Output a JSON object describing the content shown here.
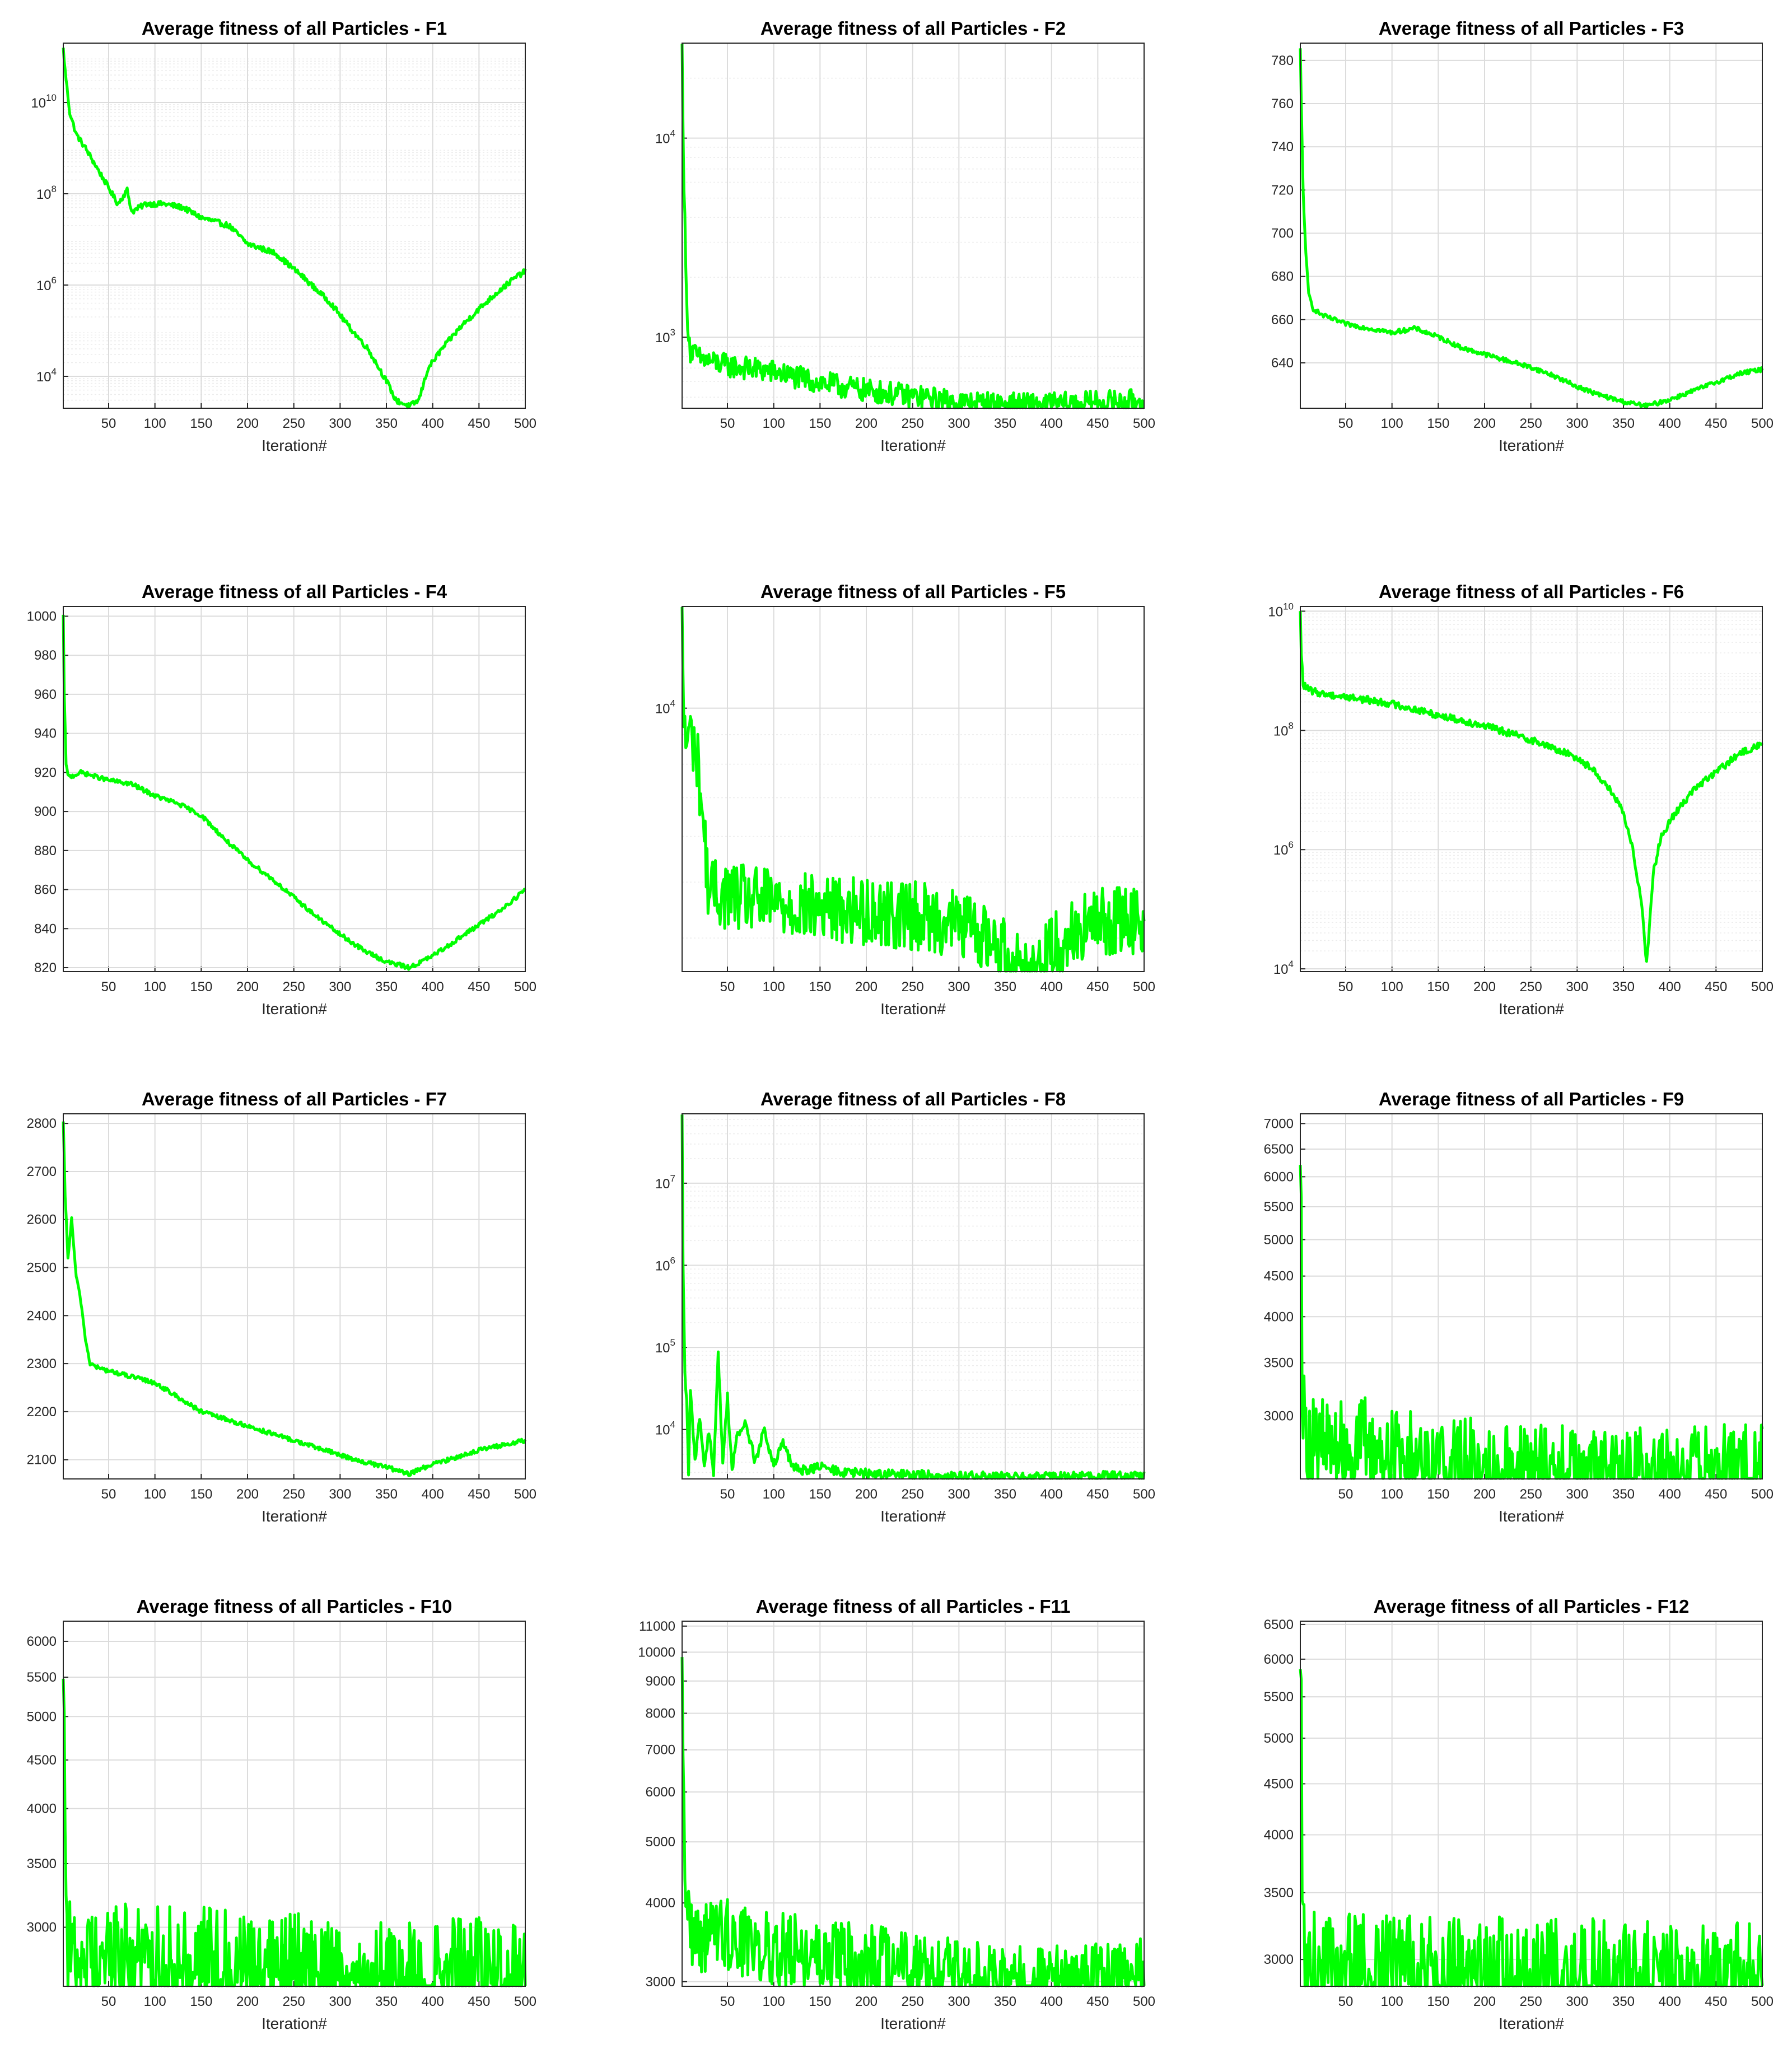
{
  "chart_data": [
    {
      "type": "line",
      "title": "Average fitness of all Particles - F1",
      "xlabel": "Iteration#",
      "ylabel": "",
      "xlim": [
        1,
        500
      ],
      "xticks": [
        50,
        100,
        150,
        200,
        250,
        300,
        350,
        400,
        450,
        500
      ],
      "yscale": "log",
      "ylim": [
        2000,
        200000000000.0
      ],
      "ytick_labels": [
        {
          "v": 10000,
          "base": "10",
          "exp": "4"
        },
        {
          "v": 1000000,
          "base": "10",
          "exp": "6"
        },
        {
          "v": 100000000,
          "base": "10",
          "exp": "8"
        },
        {
          "v": 10000000000,
          "base": "10",
          "exp": "10"
        }
      ],
      "grid": true,
      "line_color": "#00ff00",
      "series": [
        {
          "x": [
            1,
            3,
            8,
            15,
            25,
            40,
            60,
            70,
            75,
            90,
            110,
            130,
            150,
            180,
            200,
            230,
            260,
            290,
            310,
            330,
            350,
            360,
            375,
            385,
            395,
            410,
            430,
            450,
            470,
            490,
            500
          ],
          "y": [
            150000000000.0,
            50000000000.0,
            6000000000.0,
            2000000000.0,
            1000000000.0,
            300000000.0,
            60000000.0,
            120000000.0,
            40000000.0,
            60000000.0,
            60000000.0,
            50000000.0,
            30000000.0,
            20000000.0,
            8000000.0,
            5000000.0,
            1500000.0,
            400000.0,
            120000.0,
            40000.0,
            8000.0,
            3000.0,
            2200.0,
            3000.0,
            15000.0,
            40000.0,
            120000.0,
            300000.0,
            700000.0,
            1500000.0,
            2000000.0
          ]
        }
      ]
    },
    {
      "type": "line",
      "title": "Average fitness of all Particles - F2",
      "xlabel": "Iteration#",
      "ylabel": "",
      "xlim": [
        1,
        500
      ],
      "xticks": [
        50,
        100,
        150,
        200,
        250,
        300,
        350,
        400,
        450,
        500
      ],
      "yscale": "log",
      "ylim": [
        440,
        30000
      ],
      "ytick_labels": [
        {
          "v": 1000,
          "base": "10",
          "exp": "3"
        },
        {
          "v": 10000,
          "base": "10",
          "exp": "4"
        }
      ],
      "grid": true,
      "line_color": "#00ff00",
      "series": [
        {
          "x": [
            1,
            3,
            6,
            10,
            20,
            50,
            80,
            100,
            130,
            160,
            200,
            250,
            300,
            350,
            375,
            400,
            450,
            500
          ],
          "y": [
            28000,
            6000,
            1400,
            850,
            780,
            720,
            690,
            670,
            620,
            580,
            540,
            505,
            470,
            460,
            458,
            460,
            470,
            480
          ]
        }
      ]
    },
    {
      "type": "line",
      "title": "Average fitness of all Particles - F3",
      "xlabel": "Iteration#",
      "ylabel": "",
      "xlim": [
        1,
        500
      ],
      "xticks": [
        50,
        100,
        150,
        200,
        250,
        300,
        350,
        400,
        450,
        500
      ],
      "yscale": "linear",
      "ylim": [
        619,
        788
      ],
      "yticks": [
        640,
        660,
        680,
        700,
        720,
        740,
        760,
        780
      ],
      "grid": true,
      "line_color": "#00ff00",
      "series": [
        {
          "x": [
            1,
            2,
            4,
            7,
            10,
            15,
            25,
            50,
            75,
            100,
            125,
            150,
            175,
            200,
            225,
            250,
            275,
            300,
            325,
            350,
            375,
            400,
            425,
            450,
            475,
            500
          ],
          "y": [
            785,
            760,
            720,
            690,
            672,
            665,
            662,
            658,
            656,
            654,
            656,
            652,
            647,
            644,
            641,
            638,
            634,
            629,
            625,
            622,
            620,
            623,
            627,
            631,
            635,
            637
          ]
        }
      ]
    },
    {
      "type": "line",
      "title": "Average fitness of all Particles - F4",
      "xlabel": "Iteration#",
      "ylabel": "",
      "xlim": [
        1,
        500
      ],
      "xticks": [
        50,
        100,
        150,
        200,
        250,
        300,
        350,
        400,
        450,
        500
      ],
      "yscale": "linear",
      "ylim": [
        818,
        1005
      ],
      "yticks": [
        820,
        840,
        860,
        880,
        900,
        920,
        940,
        960,
        980,
        1000
      ],
      "grid": true,
      "line_color": "#00ff00",
      "series": [
        {
          "x": [
            1,
            2,
            4,
            6,
            10,
            20,
            50,
            75,
            100,
            125,
            150,
            175,
            200,
            225,
            250,
            275,
            300,
            325,
            350,
            375,
            400,
            425,
            450,
            475,
            500
          ],
          "y": [
            1000,
            960,
            925,
            918,
            918,
            920,
            916,
            914,
            908,
            904,
            898,
            886,
            875,
            866,
            856,
            846,
            837,
            829,
            823,
            820,
            826,
            834,
            842,
            850,
            860
          ]
        }
      ]
    },
    {
      "type": "line",
      "title": "Average fitness of all Particles - F5",
      "xlabel": "Iteration#",
      "ylabel": "",
      "xlim": [
        1,
        500
      ],
      "xticks": [
        50,
        100,
        150,
        200,
        250,
        300,
        350,
        400,
        450,
        500
      ],
      "yscale": "log",
      "ylim": [
        3500,
        15000
      ],
      "ytick_labels": [
        {
          "v": 10000,
          "base": "10",
          "exp": "4"
        }
      ],
      "grid": true,
      "line_color": "#00ff00",
      "series": [
        {
          "x": [
            1,
            3,
            5,
            10,
            15,
            20,
            25,
            30,
            50,
            75,
            100,
            150,
            200,
            250,
            300,
            325,
            350,
            365,
            375,
            385,
            400,
            425,
            450,
            475,
            500
          ],
          "y": [
            14500,
            9500,
            8800,
            9000,
            8600,
            7500,
            6000,
            4800,
            4750,
            4650,
            4600,
            4500,
            4450,
            4380,
            4250,
            4050,
            3800,
            3600,
            3520,
            3600,
            3850,
            4100,
            4250,
            4300,
            4320
          ]
        }
      ]
    },
    {
      "type": "line",
      "title": "Average fitness of all Particles - F6",
      "xlabel": "Iteration#",
      "ylabel": "",
      "xlim": [
        1,
        500
      ],
      "xticks": [
        50,
        100,
        150,
        200,
        250,
        300,
        350,
        400,
        450,
        500
      ],
      "yscale": "log",
      "ylim": [
        9000,
        12000000000.0
      ],
      "ytick_labels": [
        {
          "v": 10000,
          "base": "10",
          "exp": "4"
        },
        {
          "v": 1000000,
          "base": "10",
          "exp": "6"
        },
        {
          "v": 100000000,
          "base": "10",
          "exp": "8"
        },
        {
          "v": 10000000000,
          "base": "10",
          "exp": "10"
        }
      ],
      "grid": true,
      "line_color": "#00ff00",
      "series": [
        {
          "x": [
            1,
            2,
            4,
            8,
            15,
            30,
            60,
            100,
            150,
            200,
            250,
            300,
            320,
            340,
            350,
            360,
            370,
            375,
            378,
            382,
            390,
            400,
            425,
            450,
            475,
            500
          ],
          "y": [
            9000000000.0,
            2000000000.0,
            600000000.0,
            500000000.0,
            450000000.0,
            400000000.0,
            350000000.0,
            280000000.0,
            180000000.0,
            120000000.0,
            70000000.0,
            35000000.0,
            20000000.0,
            8000000.0,
            4000000.0,
            1000000.0,
            120000.0,
            12000.0,
            50000.0,
            400000.0,
            1500000.0,
            3000000.0,
            10000000.0,
            20000000.0,
            40000000.0,
            60000000.0
          ]
        }
      ]
    },
    {
      "type": "line",
      "title": "Average fitness of all Particles - F7",
      "xlabel": "Iteration#",
      "ylabel": "",
      "xlim": [
        1,
        500
      ],
      "xticks": [
        50,
        100,
        150,
        200,
        250,
        300,
        350,
        400,
        450,
        500
      ],
      "yscale": "linear",
      "ylim": [
        2060,
        2820
      ],
      "yticks": [
        2100,
        2200,
        2300,
        2400,
        2500,
        2600,
        2700,
        2800
      ],
      "grid": true,
      "line_color": "#00ff00",
      "series": [
        {
          "x": [
            1,
            3,
            6,
            10,
            15,
            20,
            25,
            30,
            40,
            60,
            100,
            125,
            150,
            175,
            200,
            225,
            250,
            275,
            300,
            325,
            350,
            365,
            375,
            385,
            400,
            425,
            450,
            475,
            500
          ],
          "y": [
            2800,
            2650,
            2520,
            2600,
            2480,
            2430,
            2350,
            2300,
            2290,
            2280,
            2260,
            2230,
            2200,
            2185,
            2170,
            2155,
            2140,
            2125,
            2110,
            2095,
            2085,
            2075,
            2070,
            2080,
            2090,
            2105,
            2120,
            2130,
            2140
          ]
        }
      ]
    },
    {
      "type": "line",
      "title": "Average fitness of all Particles - F8",
      "xlabel": "Iteration#",
      "ylabel": "",
      "xlim": [
        1,
        500
      ],
      "xticks": [
        50,
        100,
        150,
        200,
        250,
        300,
        350,
        400,
        450,
        500
      ],
      "yscale": "log",
      "ylim": [
        2500,
        70000000.0
      ],
      "ytick_labels": [
        {
          "v": 10000,
          "base": "10",
          "exp": "4"
        },
        {
          "v": 100000,
          "base": "10",
          "exp": "5"
        },
        {
          "v": 1000000,
          "base": "10",
          "exp": "6"
        },
        {
          "v": 10000000,
          "base": "10",
          "exp": "7"
        }
      ],
      "grid": true,
      "line_color": "#00ff00",
      "series": [
        {
          "x": [
            1,
            2,
            4,
            6,
            8,
            10,
            15,
            20,
            25,
            30,
            35,
            40,
            45,
            50,
            55,
            60,
            70,
            80,
            90,
            100,
            110,
            120,
            130,
            150,
            175,
            200,
            250,
            300,
            350,
            375,
            400,
            450,
            500
          ],
          "y": [
            60000000.0,
            1000000.0,
            50000.0,
            20000.0,
            3000.0,
            30000.0,
            4000.0,
            15000.0,
            3500.0,
            10000.0,
            3000.0,
            80000.0,
            4000.0,
            25000.0,
            3200.0,
            8000.0,
            12000.0,
            4000.0,
            10000.0,
            3500.0,
            7000.0,
            3500.0,
            3200.0,
            3500.0,
            3000.0,
            2900.0,
            2800.0,
            2700.0,
            2650.0,
            2600.0,
            2650.0,
            2700.0,
            2800.0
          ]
        }
      ]
    },
    {
      "type": "line",
      "title": "Average fitness of all Particles - F9",
      "xlabel": "Iteration#",
      "ylabel": "",
      "xlim": [
        1,
        500
      ],
      "xticks": [
        50,
        100,
        150,
        200,
        250,
        300,
        350,
        400,
        450,
        500
      ],
      "yscale": "log",
      "ylim": [
        2500,
        7200
      ],
      "yticks": [
        3000,
        3500,
        4000,
        4500,
        5000,
        5500,
        6000,
        6500,
        7000
      ],
      "grid": true,
      "line_color": "#00ff00",
      "series": [
        {
          "x": [
            1,
            2,
            3,
            5,
            8,
            12,
            20,
            40,
            60,
            70,
            80,
            100,
            150,
            200,
            250,
            300,
            350,
            375,
            400,
            450,
            500
          ],
          "y": [
            7100,
            5500,
            3400,
            2950,
            2850,
            2800,
            2760,
            2740,
            2720,
            2800,
            2700,
            2680,
            2630,
            2600,
            2570,
            2550,
            2540,
            2535,
            2540,
            2550,
            2560
          ]
        }
      ]
    },
    {
      "type": "line",
      "title": "Average fitness of all Particles - F10",
      "xlabel": "Iteration#",
      "ylabel": "",
      "xlim": [
        1,
        500
      ],
      "xticks": [
        50,
        100,
        150,
        200,
        250,
        300,
        350,
        400,
        450,
        500
      ],
      "yscale": "log",
      "ylim": [
        2600,
        6300
      ],
      "yticks": [
        3000,
        3500,
        4000,
        4500,
        5000,
        5500,
        6000
      ],
      "grid": true,
      "line_color": "#00ff00",
      "series": [
        {
          "x": [
            1,
            2,
            3,
            4,
            6,
            8,
            12,
            20,
            50,
            100,
            150,
            200,
            250,
            300,
            350,
            375,
            400,
            450,
            500
          ],
          "y": [
            6200,
            5200,
            3800,
            3100,
            2880,
            2800,
            2780,
            2780,
            2780,
            2770,
            2760,
            2740,
            2720,
            2690,
            2660,
            2650,
            2660,
            2680,
            2700
          ]
        }
      ]
    },
    {
      "type": "line",
      "title": "Average fitness of all Particles - F11",
      "xlabel": "Iteration#",
      "ylabel": "",
      "xlim": [
        1,
        500
      ],
      "xticks": [
        50,
        100,
        150,
        200,
        250,
        300,
        350,
        400,
        450,
        500
      ],
      "yscale": "log",
      "ylim": [
        2950,
        11200
      ],
      "yticks": [
        3000,
        4000,
        5000,
        6000,
        7000,
        8000,
        9000,
        10000,
        11000
      ],
      "grid": true,
      "line_color": "#00ff00",
      "series": [
        {
          "x": [
            1,
            2,
            3,
            5,
            8,
            12,
            20,
            40,
            50,
            60,
            80,
            100,
            150,
            200,
            250,
            300,
            350,
            375,
            400,
            450,
            500
          ],
          "y": [
            11000,
            7500,
            5200,
            4200,
            3800,
            3600,
            3550,
            3580,
            3600,
            3480,
            3420,
            3380,
            3300,
            3220,
            3140,
            3050,
            2990,
            2970,
            2990,
            3040,
            3080
          ]
        }
      ]
    },
    {
      "type": "line",
      "title": "Average fitness of all Particles - F12",
      "xlabel": "Iteration#",
      "ylabel": "",
      "xlim": [
        1,
        500
      ],
      "xticks": [
        50,
        100,
        150,
        200,
        250,
        300,
        350,
        400,
        450,
        500
      ],
      "yscale": "log",
      "ylim": [
        2820,
        6550
      ],
      "yticks": [
        3000,
        3500,
        4000,
        4500,
        5000,
        5500,
        6000,
        6500
      ],
      "grid": true,
      "line_color": "#00ff00",
      "series": [
        {
          "x": [
            1,
            2,
            3,
            4,
            6,
            8,
            12,
            20,
            50,
            100,
            150,
            200,
            250,
            300,
            350,
            375,
            400,
            450,
            500
          ],
          "y": [
            6500,
            5000,
            3600,
            3100,
            2960,
            2930,
            2920,
            2910,
            2905,
            2900,
            2895,
            2890,
            2885,
            2880,
            2875,
            2872,
            2875,
            2880,
            2885
          ]
        }
      ]
    }
  ]
}
